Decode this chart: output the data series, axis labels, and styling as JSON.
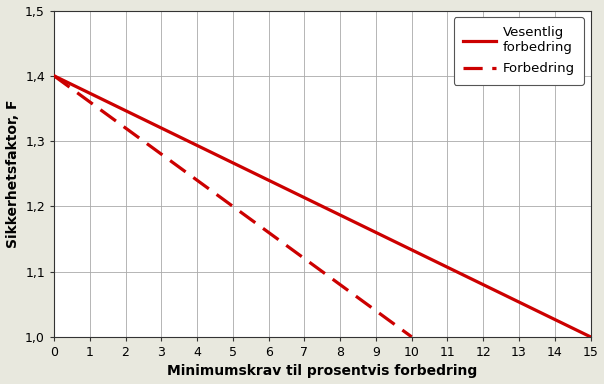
{
  "solid_line": {
    "x": [
      0,
      15
    ],
    "y": [
      1.4,
      1.0
    ],
    "color": "#cc0000",
    "linewidth": 2.3,
    "label": "Vesentlig\nforbedring"
  },
  "dashed_line": {
    "x": [
      0,
      10
    ],
    "y": [
      1.4,
      1.0
    ],
    "color": "#cc0000",
    "linewidth": 2.3,
    "label": "Forbedring"
  },
  "xlim": [
    0,
    15
  ],
  "ylim": [
    1.0,
    1.5
  ],
  "xticks": [
    0,
    1,
    2,
    3,
    4,
    5,
    6,
    7,
    8,
    9,
    10,
    11,
    12,
    13,
    14,
    15
  ],
  "yticks": [
    1.0,
    1.1,
    1.2,
    1.3,
    1.4,
    1.5
  ],
  "xlabel": "Minimumskrav til prosentvis forbedring",
  "ylabel": "Sikkerhetsfaktor, F",
  "plot_bg_color": "#ffffff",
  "figure_bg_color": "#e8e8de",
  "grid_color": "#aaaaaa",
  "legend_loc": "upper right"
}
